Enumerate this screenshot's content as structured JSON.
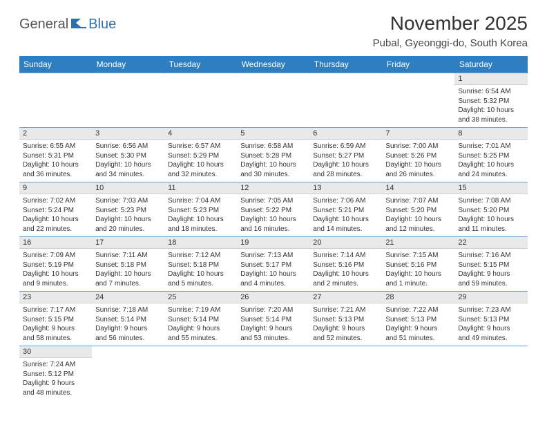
{
  "logo": {
    "part1": "General",
    "part2": "Blue"
  },
  "title": "November 2025",
  "location": "Pubal, Gyeonggi-do, South Korea",
  "colors": {
    "header_bg": "#2f7fc0",
    "header_text": "#ffffff",
    "daynum_bg": "#e9e9e9",
    "row_divider": "#6da3d3",
    "logo_blue": "#2f6fb0",
    "logo_gray": "#555555",
    "page_bg": "#ffffff"
  },
  "weekdays": [
    "Sunday",
    "Monday",
    "Tuesday",
    "Wednesday",
    "Thursday",
    "Friday",
    "Saturday"
  ],
  "weeks": [
    [
      null,
      null,
      null,
      null,
      null,
      null,
      {
        "n": "1",
        "sr": "Sunrise: 6:54 AM",
        "ss": "Sunset: 5:32 PM",
        "d1": "Daylight: 10 hours",
        "d2": "and 38 minutes."
      }
    ],
    [
      {
        "n": "2",
        "sr": "Sunrise: 6:55 AM",
        "ss": "Sunset: 5:31 PM",
        "d1": "Daylight: 10 hours",
        "d2": "and 36 minutes."
      },
      {
        "n": "3",
        "sr": "Sunrise: 6:56 AM",
        "ss": "Sunset: 5:30 PM",
        "d1": "Daylight: 10 hours",
        "d2": "and 34 minutes."
      },
      {
        "n": "4",
        "sr": "Sunrise: 6:57 AM",
        "ss": "Sunset: 5:29 PM",
        "d1": "Daylight: 10 hours",
        "d2": "and 32 minutes."
      },
      {
        "n": "5",
        "sr": "Sunrise: 6:58 AM",
        "ss": "Sunset: 5:28 PM",
        "d1": "Daylight: 10 hours",
        "d2": "and 30 minutes."
      },
      {
        "n": "6",
        "sr": "Sunrise: 6:59 AM",
        "ss": "Sunset: 5:27 PM",
        "d1": "Daylight: 10 hours",
        "d2": "and 28 minutes."
      },
      {
        "n": "7",
        "sr": "Sunrise: 7:00 AM",
        "ss": "Sunset: 5:26 PM",
        "d1": "Daylight: 10 hours",
        "d2": "and 26 minutes."
      },
      {
        "n": "8",
        "sr": "Sunrise: 7:01 AM",
        "ss": "Sunset: 5:25 PM",
        "d1": "Daylight: 10 hours",
        "d2": "and 24 minutes."
      }
    ],
    [
      {
        "n": "9",
        "sr": "Sunrise: 7:02 AM",
        "ss": "Sunset: 5:24 PM",
        "d1": "Daylight: 10 hours",
        "d2": "and 22 minutes."
      },
      {
        "n": "10",
        "sr": "Sunrise: 7:03 AM",
        "ss": "Sunset: 5:23 PM",
        "d1": "Daylight: 10 hours",
        "d2": "and 20 minutes."
      },
      {
        "n": "11",
        "sr": "Sunrise: 7:04 AM",
        "ss": "Sunset: 5:23 PM",
        "d1": "Daylight: 10 hours",
        "d2": "and 18 minutes."
      },
      {
        "n": "12",
        "sr": "Sunrise: 7:05 AM",
        "ss": "Sunset: 5:22 PM",
        "d1": "Daylight: 10 hours",
        "d2": "and 16 minutes."
      },
      {
        "n": "13",
        "sr": "Sunrise: 7:06 AM",
        "ss": "Sunset: 5:21 PM",
        "d1": "Daylight: 10 hours",
        "d2": "and 14 minutes."
      },
      {
        "n": "14",
        "sr": "Sunrise: 7:07 AM",
        "ss": "Sunset: 5:20 PM",
        "d1": "Daylight: 10 hours",
        "d2": "and 12 minutes."
      },
      {
        "n": "15",
        "sr": "Sunrise: 7:08 AM",
        "ss": "Sunset: 5:20 PM",
        "d1": "Daylight: 10 hours",
        "d2": "and 11 minutes."
      }
    ],
    [
      {
        "n": "16",
        "sr": "Sunrise: 7:09 AM",
        "ss": "Sunset: 5:19 PM",
        "d1": "Daylight: 10 hours",
        "d2": "and 9 minutes."
      },
      {
        "n": "17",
        "sr": "Sunrise: 7:11 AM",
        "ss": "Sunset: 5:18 PM",
        "d1": "Daylight: 10 hours",
        "d2": "and 7 minutes."
      },
      {
        "n": "18",
        "sr": "Sunrise: 7:12 AM",
        "ss": "Sunset: 5:18 PM",
        "d1": "Daylight: 10 hours",
        "d2": "and 5 minutes."
      },
      {
        "n": "19",
        "sr": "Sunrise: 7:13 AM",
        "ss": "Sunset: 5:17 PM",
        "d1": "Daylight: 10 hours",
        "d2": "and 4 minutes."
      },
      {
        "n": "20",
        "sr": "Sunrise: 7:14 AM",
        "ss": "Sunset: 5:16 PM",
        "d1": "Daylight: 10 hours",
        "d2": "and 2 minutes."
      },
      {
        "n": "21",
        "sr": "Sunrise: 7:15 AM",
        "ss": "Sunset: 5:16 PM",
        "d1": "Daylight: 10 hours",
        "d2": "and 1 minute."
      },
      {
        "n": "22",
        "sr": "Sunrise: 7:16 AM",
        "ss": "Sunset: 5:15 PM",
        "d1": "Daylight: 9 hours",
        "d2": "and 59 minutes."
      }
    ],
    [
      {
        "n": "23",
        "sr": "Sunrise: 7:17 AM",
        "ss": "Sunset: 5:15 PM",
        "d1": "Daylight: 9 hours",
        "d2": "and 58 minutes."
      },
      {
        "n": "24",
        "sr": "Sunrise: 7:18 AM",
        "ss": "Sunset: 5:14 PM",
        "d1": "Daylight: 9 hours",
        "d2": "and 56 minutes."
      },
      {
        "n": "25",
        "sr": "Sunrise: 7:19 AM",
        "ss": "Sunset: 5:14 PM",
        "d1": "Daylight: 9 hours",
        "d2": "and 55 minutes."
      },
      {
        "n": "26",
        "sr": "Sunrise: 7:20 AM",
        "ss": "Sunset: 5:14 PM",
        "d1": "Daylight: 9 hours",
        "d2": "and 53 minutes."
      },
      {
        "n": "27",
        "sr": "Sunrise: 7:21 AM",
        "ss": "Sunset: 5:13 PM",
        "d1": "Daylight: 9 hours",
        "d2": "and 52 minutes."
      },
      {
        "n": "28",
        "sr": "Sunrise: 7:22 AM",
        "ss": "Sunset: 5:13 PM",
        "d1": "Daylight: 9 hours",
        "d2": "and 51 minutes."
      },
      {
        "n": "29",
        "sr": "Sunrise: 7:23 AM",
        "ss": "Sunset: 5:13 PM",
        "d1": "Daylight: 9 hours",
        "d2": "and 49 minutes."
      }
    ],
    [
      {
        "n": "30",
        "sr": "Sunrise: 7:24 AM",
        "ss": "Sunset: 5:12 PM",
        "d1": "Daylight: 9 hours",
        "d2": "and 48 minutes."
      },
      null,
      null,
      null,
      null,
      null,
      null
    ]
  ]
}
